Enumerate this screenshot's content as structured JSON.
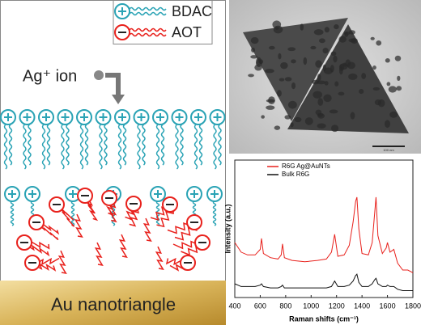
{
  "schematic": {
    "legend": [
      "BDAC",
      "AOT"
    ],
    "ion_label": "Ag⁺ ion",
    "substrate_label": "Au nanotriangle"
  },
  "tem_image": {
    "scale_bar": "100 nm"
  },
  "chart_data": {
    "type": "line",
    "xlabel": "Raman shifts (cm⁻¹)",
    "ylabel": "Intensity (a.u.)",
    "x": [
      400,
      450,
      500,
      560,
      600,
      610,
      625,
      680,
      740,
      765,
      775,
      790,
      850,
      950,
      1050,
      1120,
      1160,
      1185,
      1210,
      1260,
      1300,
      1330,
      1350,
      1360,
      1375,
      1400,
      1450,
      1480,
      1500,
      1510,
      1525,
      1560,
      1590,
      1600,
      1620,
      1650,
      1680,
      1720,
      1760,
      1800
    ],
    "series": [
      {
        "name": "R6G Ag@AuNTs",
        "color": "#e8211c",
        "values": [
          40,
          33,
          31,
          31,
          35,
          43,
          32,
          29,
          28,
          31,
          39,
          29,
          27,
          26,
          27,
          28,
          33,
          46,
          30,
          31,
          38,
          55,
          70,
          73,
          50,
          32,
          31,
          40,
          62,
          73,
          45,
          32,
          36,
          40,
          33,
          35,
          25,
          20,
          20,
          18
        ]
      },
      {
        "name": "Bulk R6G",
        "color": "#111111",
        "values": [
          10,
          8,
          8,
          8,
          9,
          10,
          8,
          7,
          7,
          8,
          9,
          7,
          7,
          7,
          7,
          7,
          8,
          12,
          8,
          8,
          9,
          12,
          16,
          17,
          11,
          8,
          8,
          10,
          13,
          14,
          10,
          8,
          8,
          9,
          8,
          8,
          6,
          5,
          5,
          5
        ]
      }
    ],
    "xlim": [
      400,
      1800
    ],
    "xticks": [
      400,
      600,
      800,
      1000,
      1200,
      1400,
      1600,
      1800
    ],
    "ylim": [
      0,
      100
    ],
    "legend": "upper-left"
  }
}
